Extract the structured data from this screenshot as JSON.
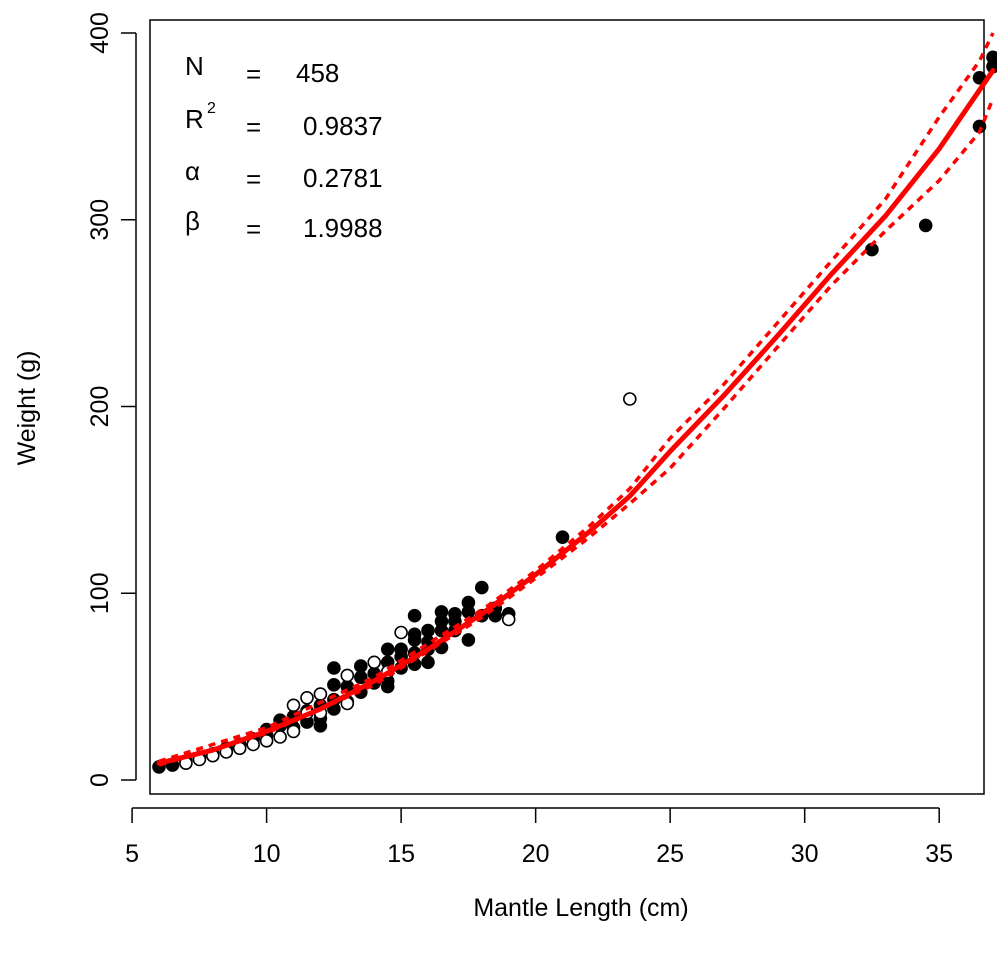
{
  "chart_data": {
    "type": "scatter",
    "xlabel": "Mantle Length (cm)",
    "ylabel": "Weight (g)",
    "xlim": [
      6,
      37
    ],
    "ylim": [
      0,
      400
    ],
    "x_ticks": [
      5,
      10,
      15,
      20,
      25,
      30,
      35
    ],
    "y_ticks": [
      0,
      100,
      200,
      300,
      400
    ],
    "grid": false,
    "stats": [
      {
        "sym": "N",
        "sup": "",
        "eq": "=",
        "val": "458"
      },
      {
        "sym": "R",
        "sup": "2",
        "eq": "=",
        "val": "0.9837"
      },
      {
        "sym": "α",
        "sup": "",
        "eq": "=",
        "val": "0.2781"
      },
      {
        "sym": "β",
        "sup": "",
        "eq": "=",
        "val": "1.9988"
      }
    ],
    "series": [
      {
        "marker": "filled-circle",
        "color": "#000000",
        "points": [
          [
            6.0,
            7
          ],
          [
            6.5,
            8
          ],
          [
            7.0,
            10
          ],
          [
            7.5,
            12
          ],
          [
            8.0,
            14
          ],
          [
            8.5,
            17
          ],
          [
            9.0,
            19
          ],
          [
            9.5,
            22
          ],
          [
            10.0,
            24
          ],
          [
            10.0,
            27
          ],
          [
            10.5,
            29
          ],
          [
            10.5,
            32
          ],
          [
            11.0,
            28
          ],
          [
            11.0,
            34
          ],
          [
            11.5,
            31
          ],
          [
            11.5,
            37
          ],
          [
            12.0,
            29
          ],
          [
            12.0,
            33
          ],
          [
            12.0,
            40
          ],
          [
            12.5,
            38
          ],
          [
            12.5,
            43
          ],
          [
            12.5,
            51
          ],
          [
            12.5,
            60
          ],
          [
            13.0,
            42
          ],
          [
            13.0,
            50
          ],
          [
            13.5,
            47
          ],
          [
            13.5,
            55
          ],
          [
            13.5,
            61
          ],
          [
            14.0,
            52
          ],
          [
            14.0,
            57
          ],
          [
            14.5,
            50
          ],
          [
            14.5,
            53
          ],
          [
            14.5,
            63
          ],
          [
            14.5,
            70
          ],
          [
            15.0,
            60
          ],
          [
            15.0,
            66
          ],
          [
            15.0,
            70
          ],
          [
            15.5,
            62
          ],
          [
            15.5,
            68
          ],
          [
            15.5,
            75
          ],
          [
            15.5,
            78
          ],
          [
            15.5,
            88
          ],
          [
            16.0,
            63
          ],
          [
            16.0,
            70
          ],
          [
            16.0,
            74
          ],
          [
            16.0,
            80
          ],
          [
            16.5,
            71
          ],
          [
            16.5,
            80
          ],
          [
            16.5,
            85
          ],
          [
            16.5,
            90
          ],
          [
            17.0,
            80
          ],
          [
            17.0,
            85
          ],
          [
            17.0,
            89
          ],
          [
            17.5,
            75
          ],
          [
            17.5,
            90
          ],
          [
            17.5,
            95
          ],
          [
            18.0,
            88
          ],
          [
            18.0,
            103
          ],
          [
            18.5,
            88
          ],
          [
            18.5,
            92
          ],
          [
            19.0,
            89
          ],
          [
            21.0,
            130
          ],
          [
            32.5,
            284
          ],
          [
            34.5,
            297
          ],
          [
            36.5,
            350
          ],
          [
            36.5,
            376
          ],
          [
            37.0,
            382
          ],
          [
            37.0,
            387
          ]
        ]
      },
      {
        "marker": "open-circle",
        "color": "#000000",
        "points": [
          [
            7.0,
            9
          ],
          [
            7.5,
            11
          ],
          [
            8.0,
            13
          ],
          [
            8.5,
            15
          ],
          [
            9.0,
            17
          ],
          [
            9.5,
            19
          ],
          [
            10.0,
            21
          ],
          [
            10.5,
            23
          ],
          [
            11.0,
            26
          ],
          [
            11.0,
            40
          ],
          [
            11.5,
            36
          ],
          [
            11.5,
            44
          ],
          [
            12.0,
            36
          ],
          [
            12.0,
            46
          ],
          [
            13.0,
            41
          ],
          [
            13.0,
            56
          ],
          [
            14.0,
            63
          ],
          [
            14.5,
            58
          ],
          [
            15.0,
            79
          ],
          [
            19.0,
            86
          ],
          [
            23.5,
            204
          ]
        ]
      }
    ],
    "fit": {
      "name": "fit",
      "color": "#ff0000",
      "x": [
        6,
        8,
        10,
        12,
        14,
        16,
        18,
        20,
        22,
        23.5,
        25,
        27,
        29,
        31,
        33,
        35,
        37
      ],
      "y": [
        9,
        16,
        26,
        38,
        53,
        70,
        89,
        110,
        133,
        152,
        176,
        206,
        238,
        271,
        302,
        338,
        380
      ]
    },
    "ci_lower": {
      "name": "lower",
      "color": "#ff0000",
      "x": [
        6,
        10,
        14,
        18,
        20,
        22,
        23.5,
        25,
        27,
        29,
        31,
        33,
        35,
        36.5,
        37
      ],
      "y": [
        8,
        25,
        51,
        87,
        108,
        130,
        148,
        167,
        199,
        232,
        265,
        294,
        321,
        347,
        365
      ]
    },
    "ci_upper": {
      "name": "upper",
      "color": "#ff0000",
      "x": [
        6,
        10,
        14,
        18,
        20,
        22,
        23.5,
        25,
        27,
        29,
        31,
        33,
        35,
        36.5,
        37
      ],
      "y": [
        10,
        28,
        55,
        91,
        112,
        136,
        156,
        183,
        212,
        245,
        278,
        311,
        355,
        385,
        400
      ]
    }
  }
}
